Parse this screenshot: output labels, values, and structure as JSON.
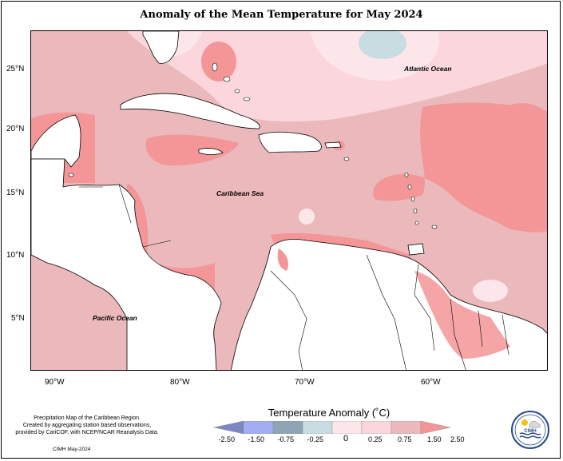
{
  "title": "Anomaly of the Mean Temperature for May 2024",
  "map": {
    "y_ticks": [
      "25°N",
      "20°N",
      "15°N",
      "10°N",
      "5°N"
    ],
    "x_ticks": [
      "90°W",
      "80°W",
      "70°W",
      "60°W"
    ],
    "labels": {
      "atlantic": "Atlantic Ocean",
      "caribbean": "Caribbean Sea",
      "pacific": "Pacific Ocean"
    }
  },
  "legend": {
    "title": "Temperature Anomaly (˚C)",
    "values": [
      "-2.50",
      "-1.50",
      "-0.75",
      "-0.25",
      "0",
      "0.25",
      "0.75",
      "1.50",
      "2.50"
    ],
    "colors": [
      "#7d86c2",
      "#a2adf2",
      "#8fa4b5",
      "#c8dde2",
      "#fce6ea",
      "#fbd7dd",
      "#ebb8bb",
      "#f49598"
    ]
  },
  "credits": {
    "line1": "Precipitation Map of the Caribbean Region.",
    "line2": "Created by aggregating station based observations,",
    "line3": "provided by CariCOF, with NCEP/NCAR Reanalysis Data.",
    "date": "CIMH May-2024"
  },
  "logo": {
    "text": "CIMH",
    "icon": "cimh-logo-icon"
  }
}
